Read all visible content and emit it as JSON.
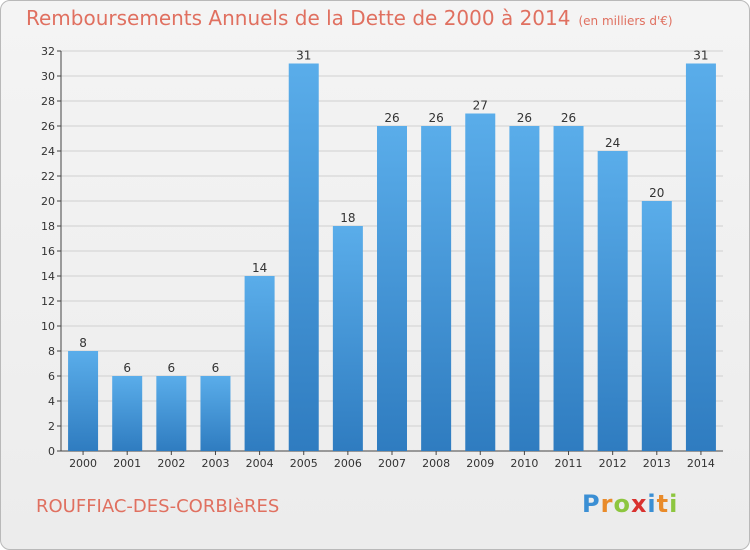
{
  "chart_data": {
    "type": "bar",
    "title": "Remboursements Annuels de la Dette de 2000 à 2014",
    "unit_note": "(en milliers d'€)",
    "categories": [
      "2000",
      "2001",
      "2002",
      "2003",
      "2004",
      "2005",
      "2006",
      "2007",
      "2008",
      "2009",
      "2010",
      "2011",
      "2012",
      "2013",
      "2014"
    ],
    "values": [
      8,
      6,
      6,
      6,
      14,
      31,
      18,
      26,
      26,
      27,
      26,
      26,
      24,
      20,
      31
    ],
    "ylim": [
      0,
      32
    ],
    "yticks": [
      0,
      2,
      4,
      6,
      8,
      10,
      12,
      14,
      16,
      18,
      20,
      22,
      24,
      26,
      28,
      30,
      32
    ],
    "grid": true,
    "bar_color": "#3d8fd6",
    "xlabel": "",
    "ylabel": ""
  },
  "footer": {
    "city": "ROUFFIAC-DES-CORBIèRES",
    "brand_letters": [
      "P",
      "r",
      "o",
      "x",
      "i",
      "t",
      "i"
    ],
    "brand_colors": [
      "#3b8fd4",
      "#e98b2a",
      "#8dc63f",
      "#d9322f",
      "#3b8fd4",
      "#e98b2a",
      "#8dc63f"
    ]
  }
}
